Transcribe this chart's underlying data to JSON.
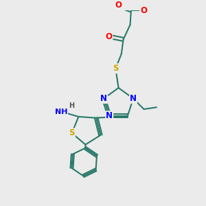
{
  "background_color": "#ebebeb",
  "bond_color": "#2a7a6a",
  "bond_width": 1.5,
  "atom_colors": {
    "O": "#ff0000",
    "N": "#0000ff",
    "S": "#ccaa00",
    "H": "#555555",
    "C": "#2a7a6a"
  },
  "font_size": 8.5,
  "figsize": [
    3.0,
    3.0
  ],
  "dpi": 100,
  "xlim": [
    0,
    10
  ],
  "ylim": [
    0,
    10
  ]
}
